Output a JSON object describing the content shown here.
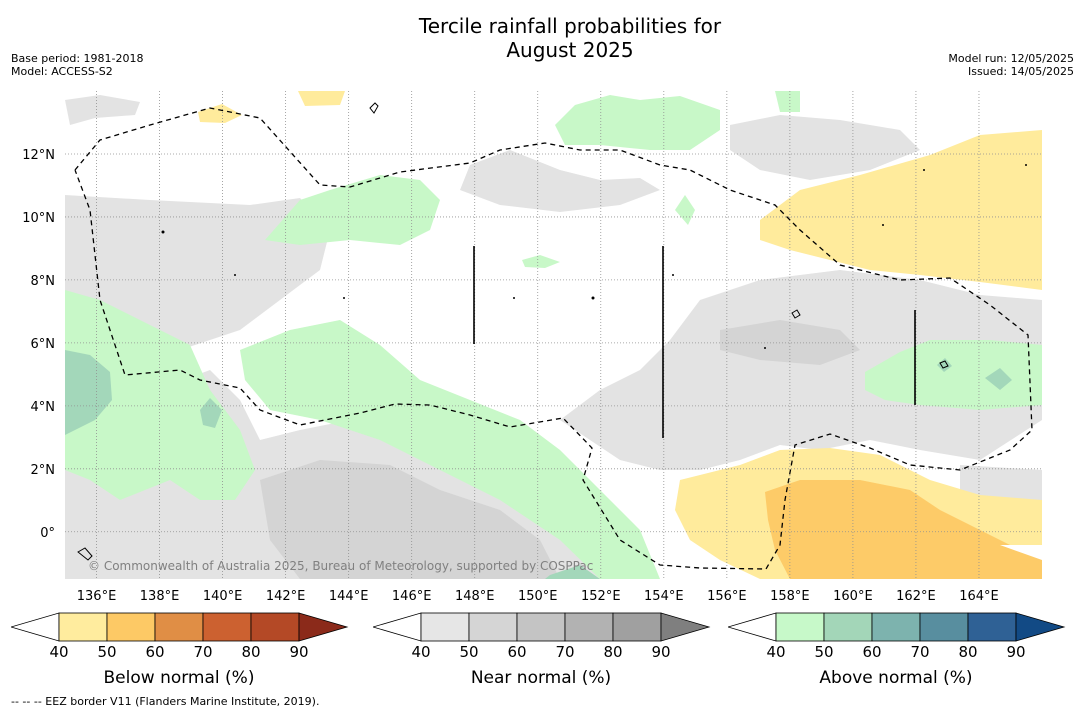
{
  "title_line1": "Tercile rainfall probabilities for",
  "title_line2": "August 2025",
  "base_period": "Base period: 1981-2018",
  "model": "Model: ACCESS-S2",
  "model_run": "Model run: 12/05/2025",
  "issued": "Issued: 14/05/2025",
  "copyright": "© Commonwealth of Australia 2025, Bureau of Meteorology, supported by COSPPac",
  "footer": "--  --  -- EEZ border V11 (Flanders Marine Institute, 2019).",
  "map": {
    "lon_range": [
      135,
      166
    ],
    "lat_range": [
      -1.5,
      14
    ],
    "lon_ticks": [
      "136°E",
      "138°E",
      "140°E",
      "142°E",
      "144°E",
      "146°E",
      "148°E",
      "150°E",
      "152°E",
      "154°E",
      "156°E",
      "158°E",
      "160°E",
      "162°E",
      "164°E"
    ],
    "lat_ticks": [
      "12°N",
      "10°N",
      "8°N",
      "6°N",
      "4°N",
      "2°N",
      "0°"
    ],
    "grid": true,
    "colors": {
      "near_normal_40": "#e3e3e3",
      "near_normal_50": "#d4d4d4",
      "above_40": "#c8f8c8",
      "above_50": "#a3d7ba",
      "below_40": "#ffeb9c",
      "below_50": "#fdcb68"
    }
  },
  "colorbars": [
    {
      "label": "Below normal (%)",
      "colors": [
        "#ffffff",
        "#ffec9e",
        "#fdc965",
        "#e08e45",
        "#cc6130",
        "#b44926",
        "#8b2a1a"
      ],
      "ticks": [
        "40",
        "50",
        "60",
        "70",
        "80",
        "90"
      ]
    },
    {
      "label": "Near normal (%)",
      "colors": [
        "#ffffff",
        "#e6e6e6",
        "#d5d5d5",
        "#c4c4c4",
        "#b2b2b2",
        "#a0a0a0",
        "#7f7f7f"
      ],
      "ticks": [
        "40",
        "50",
        "60",
        "70",
        "80",
        "90"
      ]
    },
    {
      "label": "Above normal (%)",
      "colors": [
        "#ffffff",
        "#c7f9c9",
        "#a3d6b8",
        "#7db3ae",
        "#588e9f",
        "#2f6195",
        "#124a85"
      ],
      "ticks": [
        "40",
        "50",
        "60",
        "70",
        "80",
        "90"
      ]
    }
  ]
}
